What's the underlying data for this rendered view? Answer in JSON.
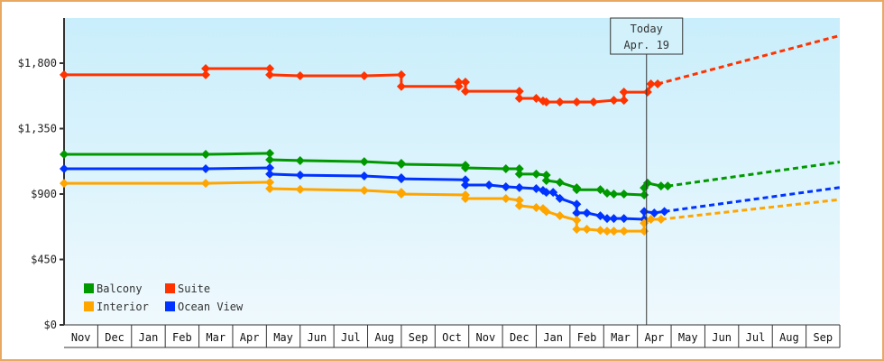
{
  "chart_data": {
    "type": "line",
    "title": "",
    "xlabel": "",
    "ylabel": "",
    "ylim": [
      0,
      2100
    ],
    "y_ticks": [
      {
        "value": 0,
        "label": "$0"
      },
      {
        "value": 450,
        "label": "$450"
      },
      {
        "value": 900,
        "label": "$900"
      },
      {
        "value": 1350,
        "label": "$1,350"
      },
      {
        "value": 1800,
        "label": "$1,800"
      }
    ],
    "x_months": [
      "Nov",
      "Dec",
      "Jan",
      "Feb",
      "Mar",
      "Apr",
      "May",
      "Jun",
      "Jul",
      "Aug",
      "Sep",
      "Oct",
      "Nov",
      "Dec",
      "Jan",
      "Feb",
      "Mar",
      "Apr",
      "May",
      "Jun",
      "Jul",
      "Aug",
      "Sep"
    ],
    "today": {
      "label_line1": "Today",
      "label_line2": "Apr. 19",
      "month_index": 17.27
    },
    "legend": [
      {
        "name": "Balcony",
        "color": "#009900"
      },
      {
        "name": "Suite",
        "color": "#ff3300"
      },
      {
        "name": "Interior",
        "color": "#ffa500"
      },
      {
        "name": "Ocean View",
        "color": "#0033ff"
      }
    ],
    "series": [
      {
        "name": "Suite",
        "color": "#ff3300",
        "points": [
          [
            0,
            1720
          ],
          [
            4.2,
            1720
          ],
          [
            4.2,
            1763
          ],
          [
            6.1,
            1763
          ],
          [
            6.1,
            1720
          ],
          [
            7.0,
            1713
          ],
          [
            8.9,
            1713
          ],
          [
            10.0,
            1720
          ],
          [
            10.0,
            1640
          ],
          [
            11.7,
            1640
          ],
          [
            11.7,
            1670
          ],
          [
            11.9,
            1670
          ],
          [
            11.9,
            1607
          ],
          [
            13.5,
            1607
          ],
          [
            13.5,
            1558
          ],
          [
            14.0,
            1558
          ],
          [
            14.2,
            1540
          ],
          [
            14.3,
            1533
          ],
          [
            14.7,
            1533
          ],
          [
            15.2,
            1533
          ],
          [
            15.7,
            1533
          ],
          [
            16.3,
            1545
          ],
          [
            16.6,
            1545
          ],
          [
            16.6,
            1601
          ],
          [
            17.3,
            1601
          ],
          [
            17.4,
            1657
          ],
          [
            17.6,
            1657
          ]
        ],
        "forecast": [
          [
            17.6,
            1657
          ],
          [
            23.0,
            1990
          ]
        ]
      },
      {
        "name": "Balcony",
        "color": "#009900",
        "points": [
          [
            0,
            1173
          ],
          [
            4.2,
            1173
          ],
          [
            6.1,
            1180
          ],
          [
            6.1,
            1136
          ],
          [
            7.0,
            1130
          ],
          [
            8.9,
            1123
          ],
          [
            10.0,
            1111
          ],
          [
            10.0,
            1105
          ],
          [
            11.9,
            1098
          ],
          [
            11.9,
            1080
          ],
          [
            13.1,
            1074
          ],
          [
            13.5,
            1074
          ],
          [
            13.5,
            1037
          ],
          [
            14.0,
            1037
          ],
          [
            14.3,
            1030
          ],
          [
            14.3,
            993
          ],
          [
            14.7,
            980
          ],
          [
            15.2,
            943
          ],
          [
            15.2,
            930
          ],
          [
            15.9,
            930
          ],
          [
            16.1,
            906
          ],
          [
            16.3,
            900
          ],
          [
            16.6,
            900
          ],
          [
            17.2,
            894
          ],
          [
            17.2,
            943
          ],
          [
            17.3,
            975
          ],
          [
            17.7,
            955
          ],
          [
            17.9,
            955
          ]
        ],
        "forecast": [
          [
            17.9,
            955
          ],
          [
            23.0,
            1120
          ]
        ]
      },
      {
        "name": "Ocean View",
        "color": "#0033ff",
        "points": [
          [
            0,
            1074
          ],
          [
            4.2,
            1074
          ],
          [
            6.1,
            1080
          ],
          [
            6.1,
            1037
          ],
          [
            7.0,
            1030
          ],
          [
            8.9,
            1024
          ],
          [
            10.0,
            1012
          ],
          [
            10.0,
            1005
          ],
          [
            11.9,
            998
          ],
          [
            11.9,
            962
          ],
          [
            12.6,
            962
          ],
          [
            13.1,
            950
          ],
          [
            13.5,
            944
          ],
          [
            14.0,
            937
          ],
          [
            14.2,
            925
          ],
          [
            14.3,
            912
          ],
          [
            14.5,
            912
          ],
          [
            14.7,
            870
          ],
          [
            15.2,
            830
          ],
          [
            15.2,
            770
          ],
          [
            15.5,
            770
          ],
          [
            15.9,
            750
          ],
          [
            16.1,
            732
          ],
          [
            16.3,
            732
          ],
          [
            16.6,
            732
          ],
          [
            17.2,
            726
          ],
          [
            17.2,
            780
          ],
          [
            17.5,
            770
          ],
          [
            17.8,
            780
          ]
        ],
        "forecast": [
          [
            17.8,
            780
          ],
          [
            23.0,
            945
          ]
        ]
      },
      {
        "name": "Interior",
        "color": "#ffa500",
        "points": [
          [
            0,
            974
          ],
          [
            4.2,
            974
          ],
          [
            6.1,
            981
          ],
          [
            6.1,
            937
          ],
          [
            7.0,
            932
          ],
          [
            8.9,
            925
          ],
          [
            10.0,
            912
          ],
          [
            10.0,
            900
          ],
          [
            11.9,
            894
          ],
          [
            11.9,
            869
          ],
          [
            13.1,
            869
          ],
          [
            13.5,
            857
          ],
          [
            13.5,
            820
          ],
          [
            14.0,
            807
          ],
          [
            14.2,
            800
          ],
          [
            14.3,
            780
          ],
          [
            14.7,
            751
          ],
          [
            15.2,
            720
          ],
          [
            15.2,
            658
          ],
          [
            15.5,
            658
          ],
          [
            15.9,
            650
          ],
          [
            16.1,
            645
          ],
          [
            16.3,
            645
          ],
          [
            16.6,
            645
          ],
          [
            17.2,
            645
          ],
          [
            17.2,
            700
          ],
          [
            17.4,
            726
          ],
          [
            17.7,
            726
          ]
        ],
        "forecast": [
          [
            17.7,
            726
          ],
          [
            23.0,
            862
          ]
        ]
      }
    ]
  }
}
